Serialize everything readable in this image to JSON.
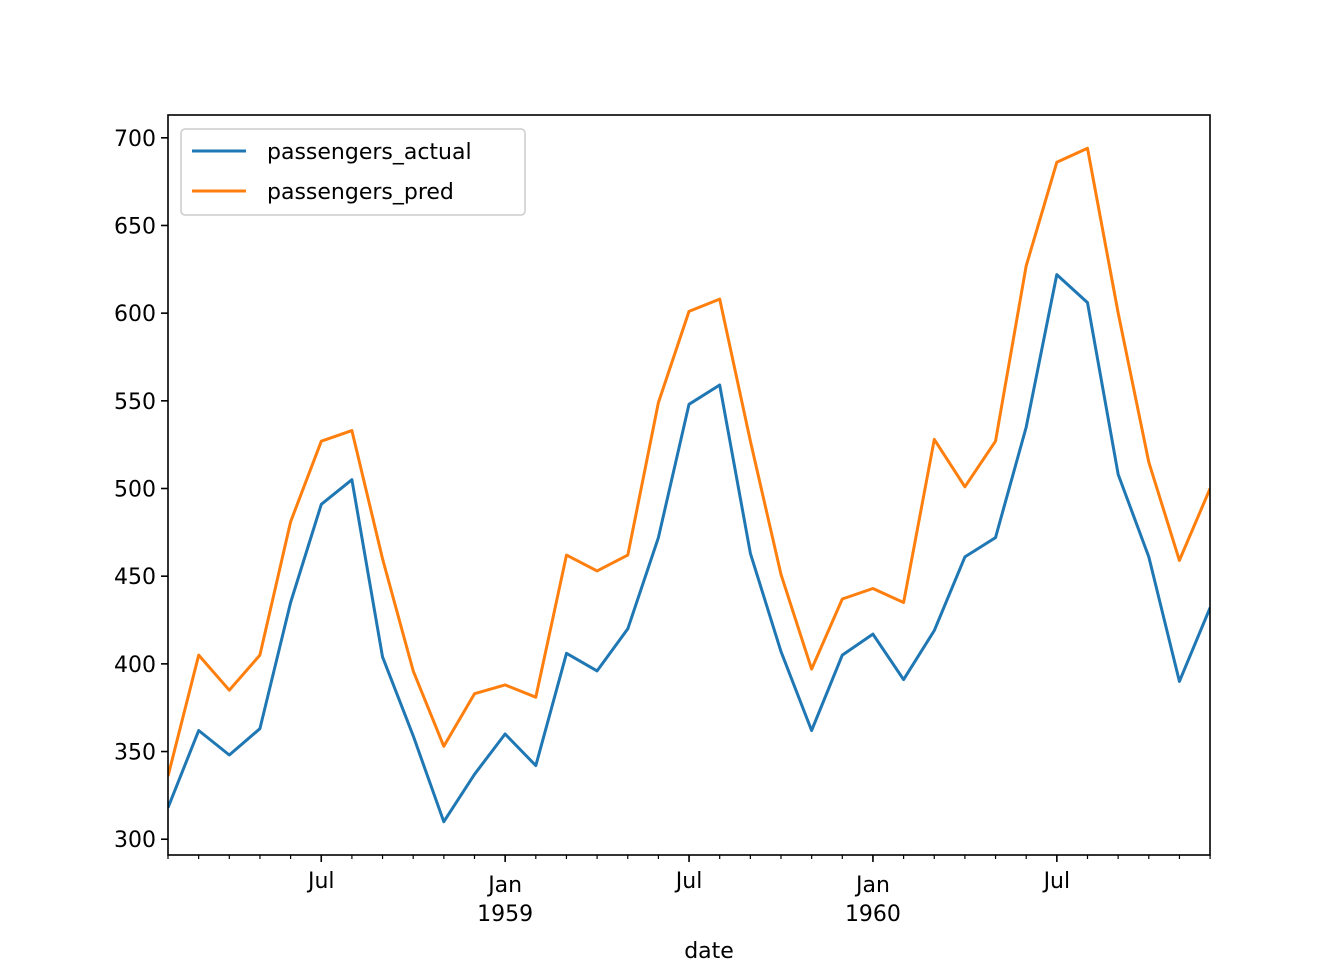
{
  "chart_data": {
    "type": "line",
    "xlabel": "date",
    "ylabel": "",
    "ylim": [
      291,
      713
    ],
    "grid": false,
    "legend_position": "top-left",
    "x_tick_labels": [
      {
        "date": "1958-07",
        "label": "Jul",
        "sublabel": ""
      },
      {
        "date": "1959-01",
        "label": "Jan",
        "sublabel": "1959"
      },
      {
        "date": "1959-07",
        "label": "Jul",
        "sublabel": ""
      },
      {
        "date": "1960-01",
        "label": "Jan",
        "sublabel": "1960"
      },
      {
        "date": "1960-07",
        "label": "Jul",
        "sublabel": ""
      }
    ],
    "y_ticks": [
      300,
      350,
      400,
      450,
      500,
      550,
      600,
      650,
      700
    ],
    "x": [
      "1958-02",
      "1958-03",
      "1958-04",
      "1958-05",
      "1958-06",
      "1958-07",
      "1958-08",
      "1958-09",
      "1958-10",
      "1958-11",
      "1958-12",
      "1959-01",
      "1959-02",
      "1959-03",
      "1959-04",
      "1959-05",
      "1959-06",
      "1959-07",
      "1959-08",
      "1959-09",
      "1959-10",
      "1959-11",
      "1959-12",
      "1960-01",
      "1960-02",
      "1960-03",
      "1960-04",
      "1960-05",
      "1960-06",
      "1960-07",
      "1960-08",
      "1960-09",
      "1960-10",
      "1960-11",
      "1960-12"
    ],
    "series": [
      {
        "name": "passengers_actual",
        "color": "#1f77b4",
        "values": [
          318,
          362,
          348,
          363,
          435,
          491,
          505,
          404,
          359,
          310,
          337,
          360,
          342,
          406,
          396,
          420,
          472,
          548,
          559,
          463,
          407,
          362,
          405,
          417,
          391,
          419,
          461,
          472,
          535,
          622,
          606,
          508,
          461,
          390,
          432
        ]
      },
      {
        "name": "passengers_pred",
        "color": "#ff7f0e",
        "values": [
          336,
          405,
          385,
          405,
          481,
          527,
          533,
          460,
          396,
          353,
          383,
          388,
          381,
          462,
          453,
          462,
          549,
          601,
          608,
          527,
          451,
          397,
          437,
          443,
          435,
          528,
          501,
          527,
          627,
          686,
          694,
          600,
          515,
          459,
          500
        ]
      }
    ]
  }
}
